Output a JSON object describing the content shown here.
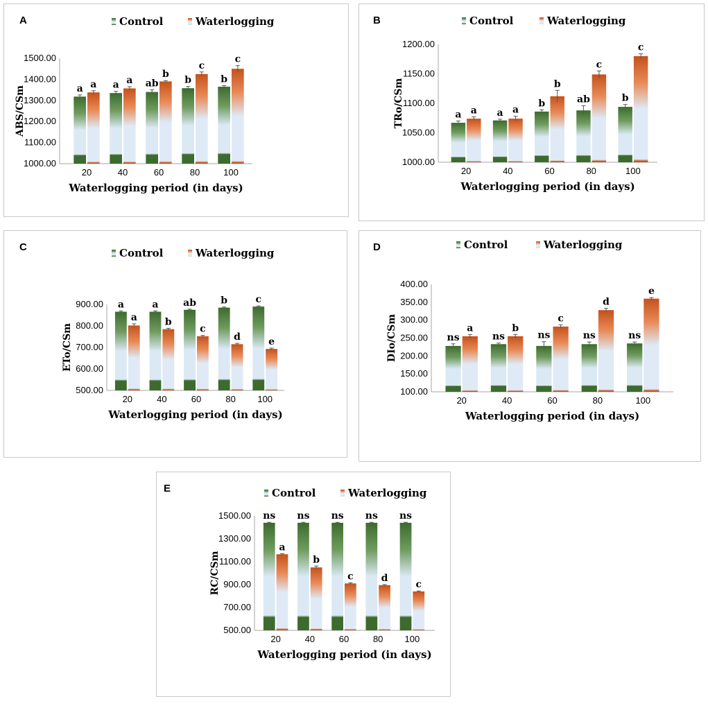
{
  "colors": {
    "control_dark": "#3d6b2e",
    "control_mid": "#6f9b5e",
    "control_light": "#dbe9f5",
    "water_dark": "#c4521c",
    "water_mid": "#e98a57",
    "water_light": "#dfeaf6",
    "panel_border": "#c8c8c8"
  },
  "chart_data": [
    {
      "panel": "A",
      "type": "bar",
      "categories": [
        "20",
        "40",
        "60",
        "80",
        "100"
      ],
      "series": [
        {
          "name": "Control",
          "values": [
            1318,
            1335,
            1340,
            1358,
            1365
          ],
          "errors": [
            8,
            8,
            10,
            8,
            5
          ],
          "letters": [
            "a",
            "a",
            "ab",
            "b",
            "b"
          ]
        },
        {
          "name": "Waterlogging",
          "values": [
            1338,
            1357,
            1390,
            1425,
            1450
          ],
          "errors": [
            8,
            8,
            4,
            10,
            15
          ],
          "letters": [
            "a",
            "a",
            "b",
            "c",
            "c"
          ]
        }
      ],
      "ylabel": "ABS/CSm",
      "xlabel": "Waterlogging period (in days)",
      "ylim": [
        1000,
        1500
      ],
      "yticks": [
        "1000.00",
        "1100.00",
        "1200.00",
        "1300.00",
        "1400.00",
        "1500.00"
      ]
    },
    {
      "panel": "B",
      "type": "bar",
      "categories": [
        "20",
        "40",
        "60",
        "80",
        "100"
      ],
      "series": [
        {
          "name": "Control",
          "values": [
            1067,
            1071,
            1086,
            1088,
            1094
          ],
          "errors": [
            3,
            2,
            3,
            8,
            4
          ],
          "letters": [
            "a",
            "a",
            "b",
            "ab",
            "b"
          ]
        },
        {
          "name": "Waterlogging",
          "values": [
            1074,
            1074,
            1112,
            1149,
            1180
          ],
          "errors": [
            3,
            4,
            10,
            6,
            4
          ],
          "letters": [
            "a",
            "a",
            "b",
            "c",
            "c"
          ]
        }
      ],
      "ylabel": "TRo/CSm",
      "xlabel": "Waterlogging period (in days)",
      "ylim": [
        1000,
        1200
      ],
      "yticks": [
        "1000.00",
        "1050.00",
        "1100.00",
        "1150.00",
        "1200.00"
      ]
    },
    {
      "panel": "C",
      "type": "bar",
      "categories": [
        "20",
        "40",
        "60",
        "80",
        "100"
      ],
      "series": [
        {
          "name": "Control",
          "values": [
            866,
            866,
            875,
            885,
            890
          ],
          "errors": [
            4,
            4,
            3,
            3,
            3
          ],
          "letters": [
            "a",
            "a",
            "ab",
            "b",
            "c"
          ]
        },
        {
          "name": "Waterlogging",
          "values": [
            802,
            785,
            752,
            715,
            693
          ],
          "errors": [
            8,
            4,
            4,
            4,
            4
          ],
          "letters": [
            "a",
            "b",
            "c",
            "d",
            "e"
          ]
        }
      ],
      "ylabel": "ETo/CSm",
      "xlabel": "Waterlogging period (in days)",
      "ylim": [
        500,
        900
      ],
      "yticks": [
        "500.00",
        "600.00",
        "700.00",
        "800.00",
        "900.00"
      ]
    },
    {
      "panel": "D",
      "type": "bar",
      "categories": [
        "20",
        "40",
        "60",
        "80",
        "100"
      ],
      "series": [
        {
          "name": "Control",
          "values": [
            228,
            233,
            228,
            233,
            235
          ],
          "errors": [
            6,
            3,
            12,
            6,
            4
          ],
          "letters": [
            "ns",
            "ns",
            "ns",
            "ns",
            "ns"
          ]
        },
        {
          "name": "Waterlogging",
          "values": [
            255,
            255,
            282,
            328,
            360
          ],
          "errors": [
            5,
            5,
            5,
            5,
            3
          ],
          "letters": [
            "a",
            "b",
            "c",
            "d",
            "e"
          ]
        }
      ],
      "ylabel": "DIo/CSm",
      "xlabel": "Waterlogging period (in days)",
      "ylim": [
        100,
        400
      ],
      "yticks": [
        "100.00",
        "150.00",
        "200.00",
        "250.00",
        "300.00",
        "350.00",
        "400.00"
      ]
    },
    {
      "panel": "E",
      "type": "bar",
      "categories": [
        "20",
        "40",
        "60",
        "80",
        "100"
      ],
      "series": [
        {
          "name": "Control",
          "values": [
            1440,
            1440,
            1440,
            1440,
            1440
          ],
          "errors": [
            4,
            4,
            4,
            4,
            4
          ],
          "letters": [
            "ns",
            "ns",
            "ns",
            "ns",
            "ns"
          ]
        },
        {
          "name": "Waterlogging",
          "values": [
            1165,
            1050,
            910,
            895,
            840
          ],
          "errors": [
            5,
            12,
            5,
            5,
            4
          ],
          "letters": [
            "a",
            "b",
            "c",
            "d",
            "c"
          ]
        }
      ],
      "ylabel": "RC/CSm",
      "xlabel": "Waterlogging period (in days)",
      "ylim": [
        500,
        1500
      ],
      "yticks": [
        "500.00",
        "700.00",
        "900.00",
        "1100.00",
        "1300.00",
        "1500.00"
      ]
    }
  ]
}
